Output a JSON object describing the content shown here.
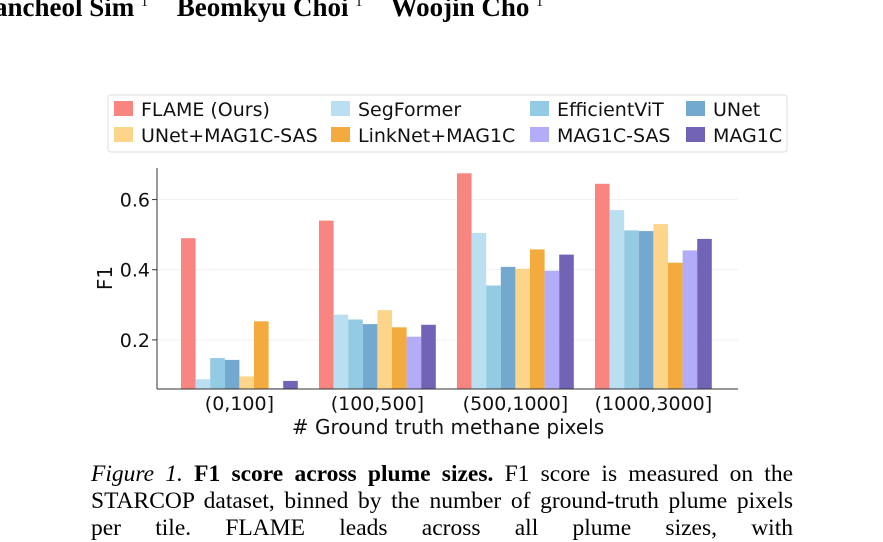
{
  "authors": [
    {
      "name": "ancheol Sim",
      "sup": "1"
    },
    {
      "name": "Beomkyu Choi",
      "sup": "1"
    },
    {
      "name": "Woojin Cho",
      "sup": "1"
    }
  ],
  "colors": {
    "FLAME (Ours)": "#f98581",
    "SegFormer": "#b9dff0",
    "EfficientViT": "#92cbe3",
    "UNet": "#73a9cf",
    "UNet+MAG1C-SAS": "#fcd48a",
    "LinkNet+MAG1C": "#f3ab3d",
    "MAG1C-SAS": "#b3acf9",
    "MAG1C": "#7263b6"
  },
  "chart_data": {
    "type": "bar",
    "categories": [
      "(0,100]",
      "(100,500]",
      "(500,1000]",
      "(1000,3000]"
    ],
    "series": [
      {
        "name": "FLAME (Ours)",
        "values": [
          0.49,
          0.54,
          0.675,
          0.645
        ]
      },
      {
        "name": "SegFormer",
        "values": [
          0.088,
          0.272,
          0.505,
          0.57
        ]
      },
      {
        "name": "EfficientViT",
        "values": [
          0.148,
          0.258,
          0.355,
          0.512
        ]
      },
      {
        "name": "UNet",
        "values": [
          0.143,
          0.245,
          0.408,
          0.51
        ]
      },
      {
        "name": "UNet+MAG1C-SAS",
        "values": [
          0.096,
          0.285,
          0.403,
          0.53
        ]
      },
      {
        "name": "LinkNet+MAG1C",
        "values": [
          0.253,
          0.236,
          0.458,
          0.42
        ]
      },
      {
        "name": "MAG1C-SAS",
        "values": [
          0.062,
          0.209,
          0.397,
          0.455
        ]
      },
      {
        "name": "MAG1C",
        "values": [
          0.083,
          0.243,
          0.443,
          0.488
        ]
      }
    ],
    "xlabel": "# Ground truth methane pixels",
    "ylabel": "F1",
    "ylim": [
      0.06,
      0.69
    ],
    "yticks": [
      0.2,
      0.4,
      0.6
    ],
    "ytick_labels": [
      "0.2",
      "0.4",
      "0.6"
    ],
    "legend_columns": [
      [
        "FLAME (Ours)",
        "UNet+MAG1C-SAS"
      ],
      [
        "SegFormer",
        "LinkNet+MAG1C"
      ],
      [
        "EfficientViT",
        "MAG1C-SAS"
      ],
      [
        "UNet",
        "MAG1C"
      ]
    ],
    "legend_position": "above plot",
    "grid": true
  },
  "caption": {
    "label": "Figure 1.",
    "title": "F1 score across plume sizes.",
    "text": "F1 score is measured on the STARCOP dataset, binned by the number of ground-truth plume pixels per tile. FLAME leads across all plume sizes, with"
  }
}
